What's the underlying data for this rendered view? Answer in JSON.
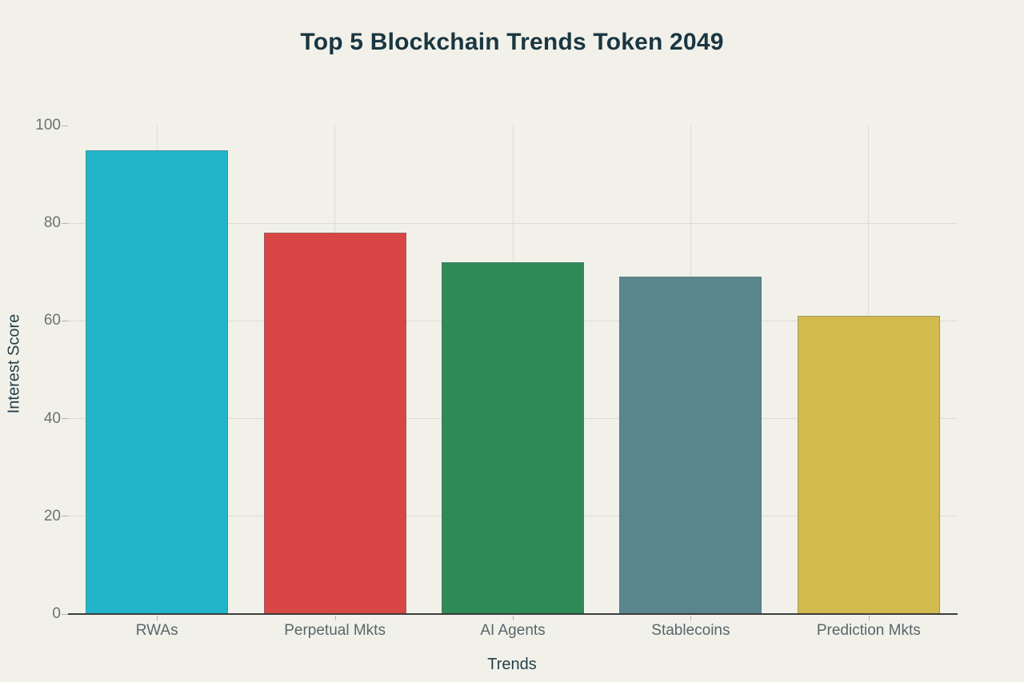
{
  "page": {
    "background": "#f1f1ea"
  },
  "chart_data": {
    "type": "bar",
    "title": "Top 5 Blockchain Trends Token 2049",
    "xlabel": "Trends",
    "ylabel": "Interest Score",
    "categories": [
      "RWAs",
      "Perpetual Mkts",
      "AI Agents",
      "Stablecoins",
      "Prediction Mkts"
    ],
    "values": [
      95,
      78,
      72,
      69,
      61
    ],
    "colors": [
      "#22b5c9",
      "#d84745",
      "#2e8b56",
      "#5a858d",
      "#d2ba4c"
    ],
    "ylim": [
      0,
      100
    ],
    "yticks": [
      0,
      20,
      40,
      60,
      80,
      100
    ],
    "ygrid_values": [
      20,
      40,
      60,
      80
    ],
    "grid": true,
    "legend_position": "none",
    "style": {
      "title_color": "#1a3641",
      "axis_title_color": "#24404a",
      "y_tick_label_color": "#6b736f",
      "category_label_color": "#5a666b",
      "gridline_color": "#dddcd2",
      "axis_line_color": "#3c3c3c",
      "tick_mark_color": "#b4b4ab",
      "bar_border_color": "rgba(90,110,120,0.45)"
    }
  }
}
